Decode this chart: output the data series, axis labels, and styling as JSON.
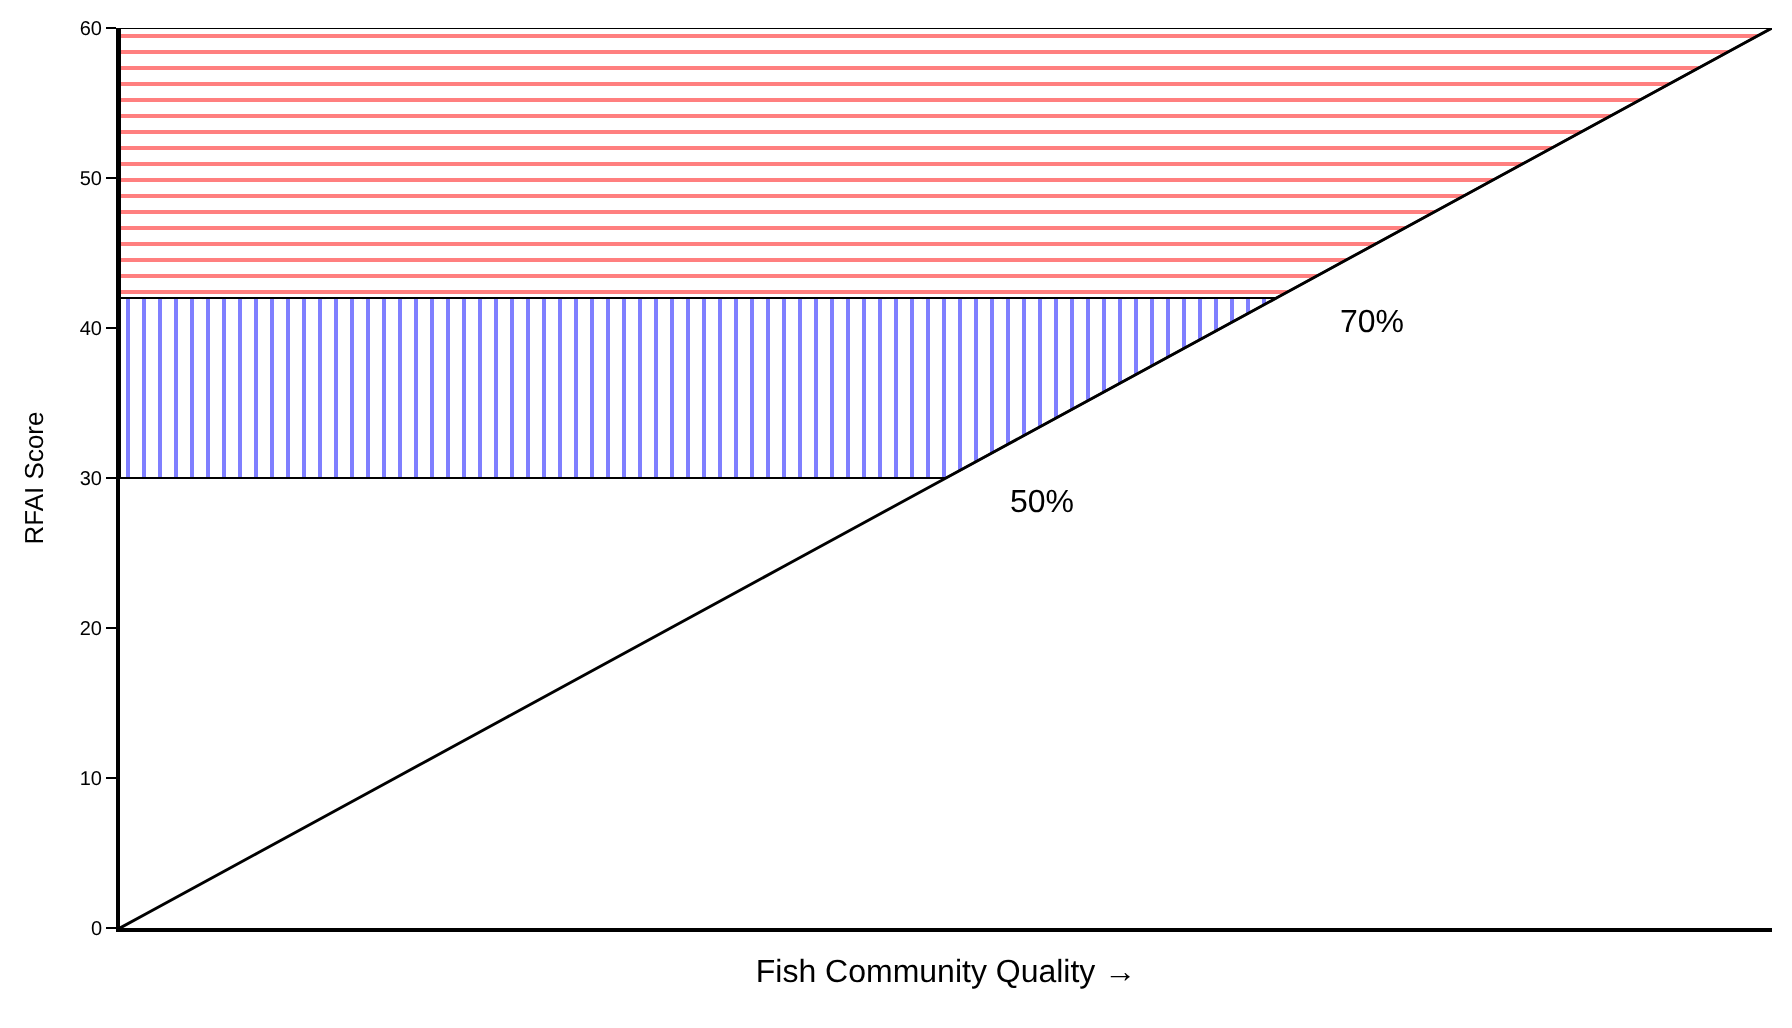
{
  "chart_data": {
    "type": "line",
    "xlabel": "Fish Community Quality →",
    "ylabel": "RFAI Score",
    "categories": [
      null,
      null,
      null,
      null,
      null,
      null,
      null,
      null,
      null,
      null,
      null,
      null,
      null,
      null,
      null,
      null,
      null,
      null,
      null,
      null,
      null,
      null,
      null,
      null,
      null,
      null,
      null,
      null,
      null,
      null,
      null,
      null,
      null,
      null,
      null,
      null,
      null,
      null,
      null,
      null,
      null,
      null,
      null,
      null,
      null,
      null,
      null,
      null,
      null,
      null,
      null,
      null,
      null,
      null,
      null,
      null,
      null,
      null,
      null,
      null,
      null
    ],
    "ylim": [
      0,
      60
    ],
    "yticks": [
      0,
      10,
      20,
      30,
      40,
      50,
      60
    ],
    "tick_labels": "y",
    "series": [
      {
        "color": "#000000",
        "values": [
          0,
          1,
          2,
          3,
          4,
          5,
          6,
          7,
          8,
          9,
          10,
          11,
          12,
          13,
          14,
          15,
          16,
          17,
          18,
          19,
          20,
          21,
          22,
          23,
          24,
          25,
          26,
          27,
          28,
          29,
          30,
          31,
          32,
          33,
          34,
          35,
          36,
          37,
          38,
          39,
          40,
          41,
          42,
          43,
          44,
          45,
          46,
          47,
          48,
          49,
          50,
          51,
          52,
          53,
          54,
          55,
          56,
          57,
          58,
          59,
          60
        ]
      }
    ],
    "bands": [
      {
        "axis": "y",
        "from": 42,
        "to": 60,
        "color": "#ff0000",
        "label": "70%"
      },
      {
        "axis": "y",
        "from": 30,
        "to": 42,
        "color": "#0000ff",
        "label": "50%"
      }
    ]
  }
}
